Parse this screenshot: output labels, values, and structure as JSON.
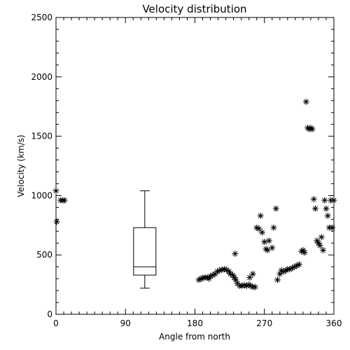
{
  "chart_data": {
    "type": "scatter",
    "title": "Velocity distribution",
    "xlabel": "Angle from north",
    "ylabel": "Velocity (km/s)",
    "xlim": [
      0,
      360
    ],
    "ylim": [
      0,
      2500
    ],
    "xticks": [
      0,
      90,
      180,
      270,
      360
    ],
    "yticks": [
      0,
      500,
      1000,
      1500,
      2000,
      2500
    ],
    "marker": "asterisk",
    "grid": false,
    "points": [
      [
        0,
        1040
      ],
      [
        1,
        780
      ],
      [
        6,
        960
      ],
      [
        9,
        960
      ],
      [
        11,
        960
      ],
      [
        185,
        290
      ],
      [
        188,
        300
      ],
      [
        190,
        305
      ],
      [
        193,
        310
      ],
      [
        196,
        310
      ],
      [
        198,
        300
      ],
      [
        200,
        320
      ],
      [
        203,
        330
      ],
      [
        206,
        340
      ],
      [
        209,
        360
      ],
      [
        212,
        370
      ],
      [
        215,
        375
      ],
      [
        218,
        380
      ],
      [
        221,
        375
      ],
      [
        224,
        360
      ],
      [
        226,
        340
      ],
      [
        229,
        330
      ],
      [
        231,
        310
      ],
      [
        233,
        290
      ],
      [
        235,
        260
      ],
      [
        238,
        240
      ],
      [
        241,
        240
      ],
      [
        244,
        245
      ],
      [
        247,
        240
      ],
      [
        250,
        250
      ],
      [
        252,
        240
      ],
      [
        255,
        230
      ],
      [
        258,
        230
      ],
      [
        232,
        510
      ],
      [
        251,
        310
      ],
      [
        255,
        340
      ],
      [
        260,
        730
      ],
      [
        263,
        720
      ],
      [
        265,
        830
      ],
      [
        267,
        690
      ],
      [
        270,
        610
      ],
      [
        272,
        550
      ],
      [
        274,
        540
      ],
      [
        276,
        620
      ],
      [
        280,
        560
      ],
      [
        282,
        730
      ],
      [
        285,
        890
      ],
      [
        287,
        290
      ],
      [
        290,
        340
      ],
      [
        292,
        370
      ],
      [
        295,
        360
      ],
      [
        298,
        370
      ],
      [
        300,
        380
      ],
      [
        303,
        380
      ],
      [
        306,
        390
      ],
      [
        309,
        400
      ],
      [
        312,
        410
      ],
      [
        315,
        420
      ],
      [
        318,
        530
      ],
      [
        320,
        540
      ],
      [
        322,
        520
      ],
      [
        324,
        1790
      ],
      [
        326,
        1570
      ],
      [
        328,
        1560
      ],
      [
        330,
        1570
      ],
      [
        332,
        1560
      ],
      [
        334,
        970
      ],
      [
        336,
        890
      ],
      [
        338,
        620
      ],
      [
        340,
        600
      ],
      [
        342,
        580
      ],
      [
        344,
        650
      ],
      [
        346,
        540
      ],
      [
        348,
        960
      ],
      [
        350,
        890
      ],
      [
        352,
        830
      ],
      [
        354,
        730
      ],
      [
        356,
        960
      ],
      [
        358,
        730
      ],
      [
        360,
        960
      ]
    ],
    "boxplot": {
      "x": 115,
      "whisker_low": 220,
      "q1": 330,
      "median": 400,
      "q3": 730,
      "whisker_high": 1040
    }
  }
}
